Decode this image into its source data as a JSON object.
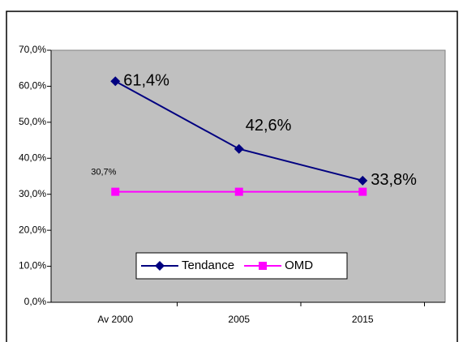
{
  "chart_data": {
    "type": "line",
    "categories": [
      "Av 2000",
      "2005",
      "2015"
    ],
    "series": [
      {
        "name": "Tendance",
        "color": "#000080",
        "marker": "diamond",
        "values": [
          61.4,
          42.6,
          33.8
        ],
        "value_labels": [
          "61,4%",
          "42,6%",
          "33,8%"
        ]
      },
      {
        "name": "OMD",
        "color": "#ff00ff",
        "marker": "square",
        "values": [
          30.7,
          30.7,
          30.7
        ],
        "value_labels": [
          "30,7%",
          null,
          null
        ]
      }
    ],
    "ylim": [
      0,
      70
    ],
    "yticks": [
      {
        "value": 0,
        "label": "0,0%"
      },
      {
        "value": 10,
        "label": "10,0%"
      },
      {
        "value": 20,
        "label": "20,0%"
      },
      {
        "value": 30,
        "label": "30,0%"
      },
      {
        "value": 40,
        "label": "40,0%"
      },
      {
        "value": 50,
        "label": "50,0%"
      },
      {
        "value": 60,
        "label": "60,0%"
      },
      {
        "value": 70,
        "label": "70,0%"
      }
    ],
    "legend": "bottom"
  }
}
